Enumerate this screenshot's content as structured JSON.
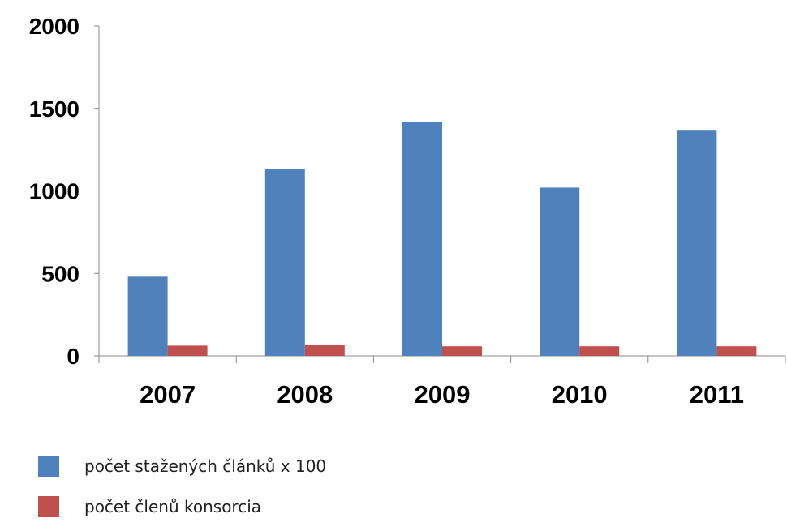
{
  "chart_data": {
    "type": "bar",
    "categories": [
      "2007",
      "2008",
      "2009",
      "2010",
      "2011"
    ],
    "series": [
      {
        "name": "počet stažených článků x 100",
        "color": "#4f81bd",
        "values": [
          480,
          1130,
          1420,
          1020,
          1370
        ]
      },
      {
        "name": "počet členů konsorcia",
        "color": "#c0504d",
        "values": [
          62,
          66,
          58,
          58,
          58
        ]
      }
    ],
    "yticks": [
      "0",
      "500",
      "1000",
      "1500",
      "2000"
    ],
    "ylim": [
      0,
      2000
    ],
    "grid": false,
    "legend_position": "bottom-left"
  }
}
